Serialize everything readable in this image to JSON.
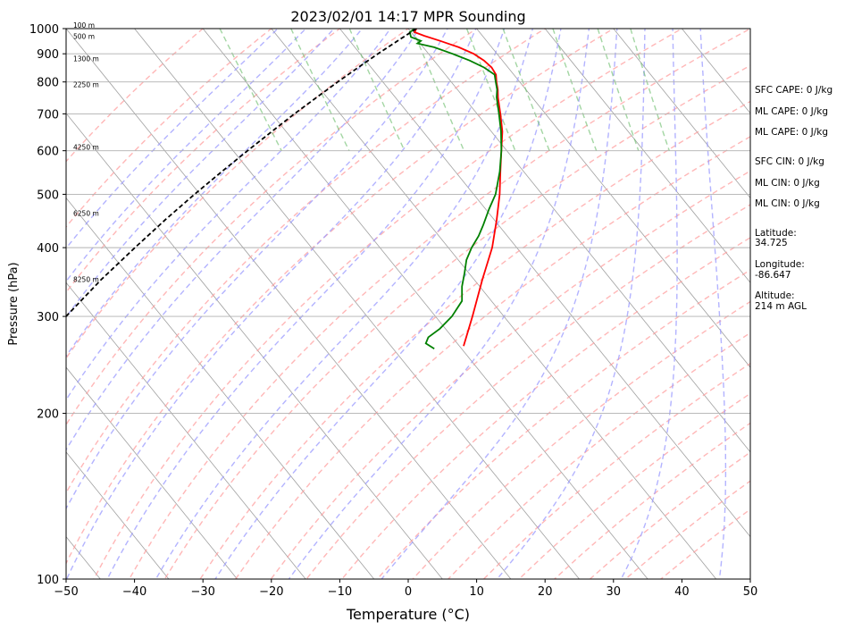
{
  "chart_data": {
    "type": "line",
    "title": "2023/02/01 14:17 MPR Sounding",
    "xlabel": "Temperature (°C)",
    "ylabel": "Pressure (hPa)",
    "xlim": [
      -50,
      50
    ],
    "ylim_pressure": [
      1000,
      100
    ],
    "log_pressure_axis": true,
    "skew_degrees_per_decade_approx": 65,
    "x_ticks": [
      -50,
      -40,
      -30,
      -20,
      -10,
      0,
      10,
      20,
      30,
      40,
      50
    ],
    "x_tick_labels": [
      "−50",
      "−40",
      "−30",
      "−20",
      "−10",
      "0",
      "10",
      "20",
      "30",
      "40",
      "50"
    ],
    "y_ticks": [
      1000,
      900,
      800,
      700,
      600,
      500,
      400,
      300,
      200,
      100
    ],
    "grid": true,
    "series": [
      {
        "kind": "temperature",
        "color": "#ff0000",
        "points": [
          {
            "p": 1000,
            "t": 1.2
          },
          {
            "p": 985,
            "t": 0.5
          },
          {
            "p": 970,
            "t": 1.5
          },
          {
            "p": 950,
            "t": 3.2
          },
          {
            "p": 925,
            "t": 5.2
          },
          {
            "p": 900,
            "t": 6.6
          },
          {
            "p": 875,
            "t": 7.3
          },
          {
            "p": 850,
            "t": 7.6
          },
          {
            "p": 825,
            "t": 7.4
          },
          {
            "p": 800,
            "t": 6.6
          },
          {
            "p": 775,
            "t": 5.9
          },
          {
            "p": 750,
            "t": 5.0
          },
          {
            "p": 700,
            "t": 3.4
          },
          {
            "p": 650,
            "t": 1.6
          },
          {
            "p": 600,
            "t": -0.8
          },
          {
            "p": 550,
            "t": -3.4
          },
          {
            "p": 500,
            "t": -6.2
          },
          {
            "p": 450,
            "t": -9.6
          },
          {
            "p": 400,
            "t": -13.6
          },
          {
            "p": 350,
            "t": -18.8
          },
          {
            "p": 300,
            "t": -24.6
          },
          {
            "p": 265,
            "t": -29.4
          }
        ]
      },
      {
        "kind": "dewpoint",
        "color": "#008000",
        "points": [
          {
            "p": 1000,
            "t": 1.0
          },
          {
            "p": 985,
            "t": -0.2
          },
          {
            "p": 965,
            "t": -0.6
          },
          {
            "p": 950,
            "t": 0.4
          },
          {
            "p": 940,
            "t": -0.4
          },
          {
            "p": 925,
            "t": 1.6
          },
          {
            "p": 900,
            "t": 3.5
          },
          {
            "p": 875,
            "t": 5.2
          },
          {
            "p": 850,
            "t": 6.5
          },
          {
            "p": 825,
            "t": 7.2
          },
          {
            "p": 800,
            "t": 6.5
          },
          {
            "p": 775,
            "t": 5.8
          },
          {
            "p": 750,
            "t": 4.8
          },
          {
            "p": 700,
            "t": 3.2
          },
          {
            "p": 650,
            "t": 1.4
          },
          {
            "p": 600,
            "t": -0.8
          },
          {
            "p": 550,
            "t": -3.5
          },
          {
            "p": 500,
            "t": -6.8
          },
          {
            "p": 470,
            "t": -9.5
          },
          {
            "p": 440,
            "t": -12.2
          },
          {
            "p": 420,
            "t": -14.2
          },
          {
            "p": 400,
            "t": -16.6
          },
          {
            "p": 380,
            "t": -18.8
          },
          {
            "p": 360,
            "t": -20.6
          },
          {
            "p": 340,
            "t": -22.6
          },
          {
            "p": 320,
            "t": -24.3
          },
          {
            "p": 300,
            "t": -27.6
          },
          {
            "p": 285,
            "t": -30.8
          },
          {
            "p": 275,
            "t": -33.5
          },
          {
            "p": 268,
            "t": -34.6
          },
          {
            "p": 262,
            "t": -34.0
          }
        ]
      },
      {
        "kind": "parcel",
        "color": "#000000",
        "dashed": true,
        "points": [
          {
            "p": 1000,
            "t": 1.2
          },
          {
            "p": 950,
            "t": -3.0
          },
          {
            "p": 900,
            "t": -7.4
          },
          {
            "p": 850,
            "t": -11.9
          },
          {
            "p": 800,
            "t": -16.6
          },
          {
            "p": 750,
            "t": -21.5
          },
          {
            "p": 700,
            "t": -26.7
          },
          {
            "p": 650,
            "t": -32.1
          },
          {
            "p": 600,
            "t": -37.9
          },
          {
            "p": 550,
            "t": -44.1
          },
          {
            "p": 500,
            "t": -50.8
          },
          {
            "p": 450,
            "t": -58.0
          },
          {
            "p": 400,
            "t": -65.8
          },
          {
            "p": 350,
            "t": -74.5
          },
          {
            "p": 300,
            "t": -84.0
          }
        ]
      }
    ],
    "height_labels": [
      {
        "p": 1000,
        "label": "100 m"
      },
      {
        "p": 955,
        "label": "500 m"
      },
      {
        "p": 870,
        "label": "1300 m"
      },
      {
        "p": 780,
        "label": "2250 m"
      },
      {
        "p": 600,
        "label": "4250 m"
      },
      {
        "p": 455,
        "label": "6250 m"
      },
      {
        "p": 345,
        "label": "8250 m"
      }
    ],
    "indices": [
      "SFC CAPE: 0 J/kg",
      "ML CAPE: 0 J/kg",
      "ML CAPE: 0 J/kg",
      "SFC CIN: 0 J/kg",
      "ML CIN: 0 J/kg",
      "ML CIN: 0 J/kg"
    ],
    "location": {
      "latitude_label": "Latitude:",
      "latitude": "34.725",
      "longitude_label": "Longitude:",
      "longitude": "-86.647",
      "altitude_label": "Altitude:",
      "altitude": "214 m AGL"
    },
    "colors": {
      "isotherm": "#a0a0a0",
      "dry_adiabat": "#ff9999",
      "moist_adiabat": "#9999ff",
      "mixing_ratio": "#66bb66",
      "grid": "#b0b0b0"
    }
  }
}
